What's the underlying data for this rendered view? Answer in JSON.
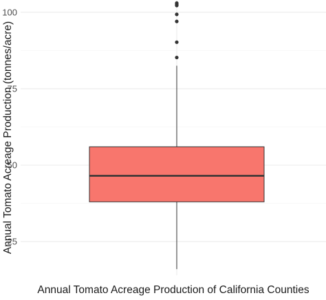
{
  "chart_data": {
    "type": "box",
    "xlabel": "Annual Tomato Acreage Production of California Counties",
    "ylabel": "Annual Tomato Acreage Production (tonnes/acre)",
    "yticks": [
      25,
      50,
      75,
      100
    ],
    "ylim": [
      14,
      104
    ],
    "grid": true,
    "box": {
      "q1": 38,
      "median": 46.5,
      "q3": 56,
      "whisker_low": 16,
      "whisker_high": 82.5,
      "fill": "#F8766D"
    },
    "outliers": [
      103,
      102.6,
      102.2,
      99.3,
      97,
      90.2,
      85.2
    ],
    "colors": {
      "box_fill": "#F8766D",
      "line": "#333333",
      "grid": "#ebebeb"
    }
  }
}
